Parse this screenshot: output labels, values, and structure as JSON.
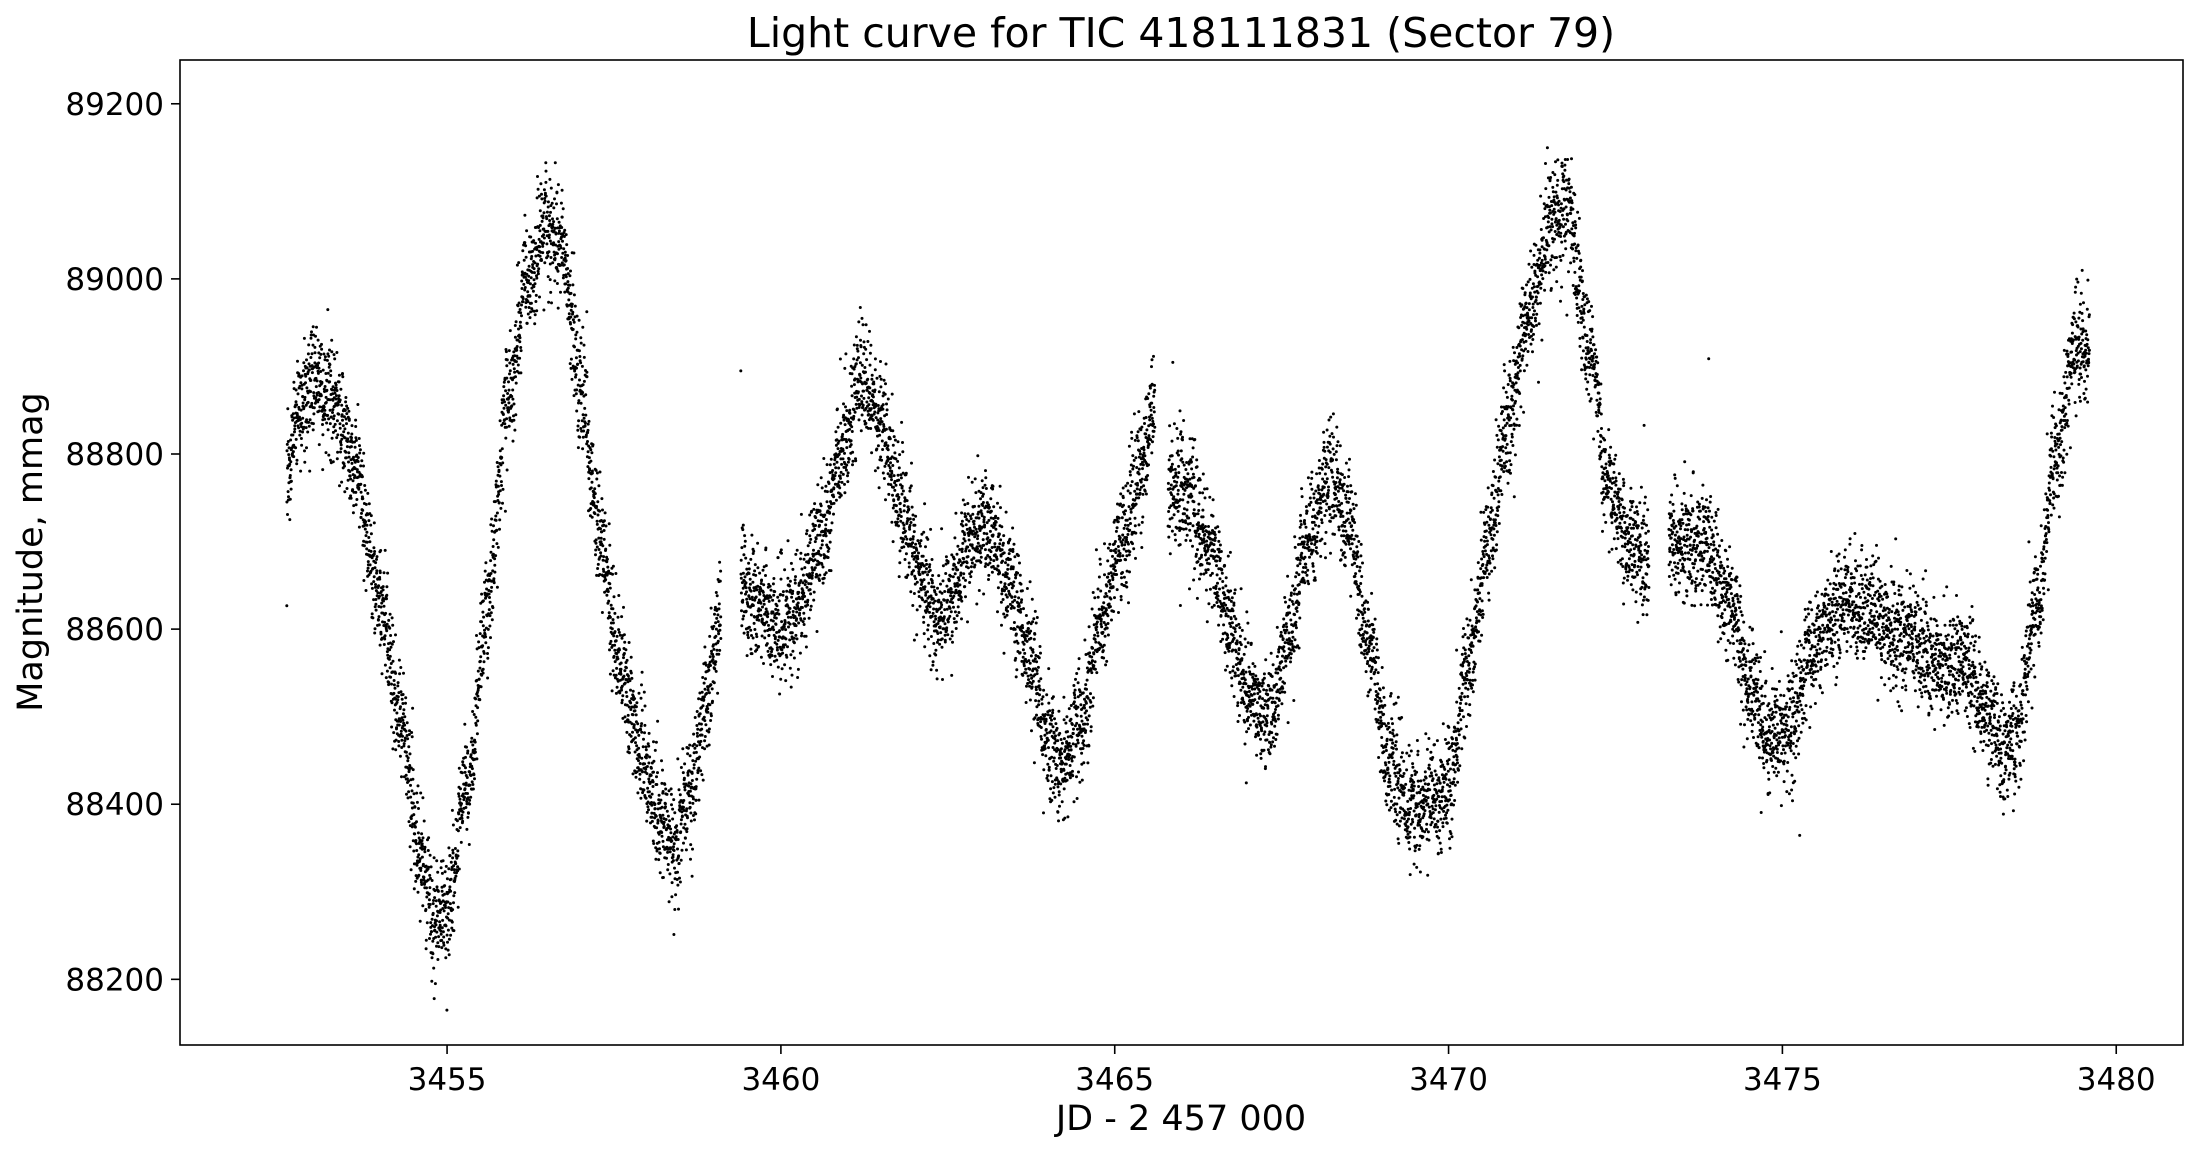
{
  "chart_data": {
    "type": "scatter",
    "title": "Light curve for TIC 418111831 (Sector 79)",
    "xlabel": "JD - 2 457 000",
    "ylabel": "Magnitude, mmag",
    "xlim": [
      3451.0,
      3481.0
    ],
    "ylim": [
      88125,
      89250
    ],
    "x_ticks": [
      3455,
      3460,
      3465,
      3470,
      3475,
      3480
    ],
    "y_ticks": [
      88200,
      88400,
      88600,
      88800,
      89000,
      89200
    ],
    "marker_color": "#000000",
    "grid": false,
    "legend": "none",
    "series": [
      {
        "segments": [
          {
            "x": [
              3452.6,
              3452.8,
              3453.0,
              3453.3,
              3453.6,
              3454.0,
              3454.3,
              3454.6,
              3454.8,
              3455.0,
              3455.3,
              3455.6,
              3455.9,
              3456.2,
              3456.5,
              3456.7,
              3457.0,
              3457.3,
              3457.6,
              3457.9,
              3458.2,
              3458.4,
              3458.6,
              3458.9,
              3459.1
            ],
            "y": [
              88780,
              88860,
              88880,
              88860,
              88790,
              88640,
              88500,
              88340,
              88270,
              88280,
              88420,
              88620,
              88850,
              89000,
              89060,
              89040,
              88880,
              88700,
              88560,
              88460,
              88380,
              88350,
              88400,
              88520,
              88620
            ]
          },
          {
            "x": [
              3459.4,
              3459.7,
              3460.0,
              3460.3,
              3460.6,
              3460.9,
              3461.2,
              3461.5,
              3461.8,
              3462.1,
              3462.4,
              3462.6,
              3462.8,
              3463.1,
              3463.4,
              3463.7,
              3464.0,
              3464.2,
              3464.5,
              3464.8,
              3465.1,
              3465.4,
              3465.6
            ],
            "y": [
              88650,
              88620,
              88600,
              88630,
              88700,
              88800,
              88880,
              88840,
              88740,
              88660,
              88610,
              88650,
              88700,
              88720,
              88660,
              88580,
              88470,
              88440,
              88500,
              88610,
              88690,
              88780,
              88860
            ]
          },
          {
            "x": [
              3465.8,
              3466.1,
              3466.4,
              3466.7,
              3467.0,
              3467.3,
              3467.6,
              3467.9,
              3468.2,
              3468.5,
              3468.8,
              3469.1,
              3469.4,
              3469.7,
              3470.0,
              3470.3,
              3470.6,
              3470.9,
              3471.2,
              3471.5,
              3471.8,
              3472.1,
              3472.4,
              3472.7,
              3473.0
            ],
            "y": [
              88760,
              88760,
              88700,
              88610,
              88520,
              88500,
              88590,
              88700,
              88770,
              88720,
              88590,
              88460,
              88400,
              88400,
              88420,
              88560,
              88700,
              88840,
              88960,
              89060,
              89080,
              88920,
              88760,
              88700,
              88680
            ]
          },
          {
            "x": [
              3473.3,
              3473.6,
              3473.9,
              3474.2,
              3474.5,
              3474.8,
              3475.1,
              3475.4,
              3475.7,
              3476.0,
              3476.3,
              3476.6,
              3476.9,
              3477.2,
              3477.5,
              3477.8,
              3478.1,
              3478.3,
              3478.5,
              3478.8,
              3479.1,
              3479.4,
              3479.6
            ],
            "y": [
              88700,
              88700,
              88700,
              88630,
              88540,
              88480,
              88480,
              88570,
              88610,
              88630,
              88620,
              88600,
              88590,
              88570,
              88560,
              88560,
              88500,
              88460,
              88480,
              88620,
              88800,
              88920,
              88920
            ]
          }
        ]
      }
    ]
  }
}
